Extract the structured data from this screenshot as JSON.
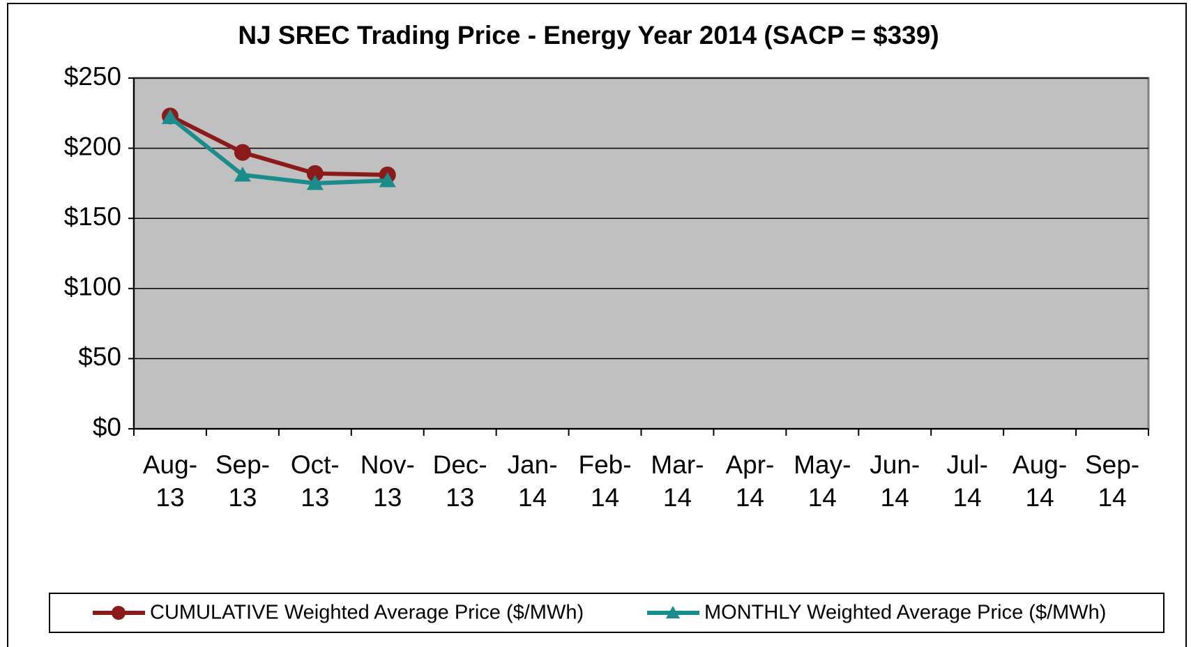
{
  "chart_data": {
    "type": "line",
    "title": "NJ SREC Trading Price - Energy Year 2014 (SACP = $339)",
    "categories": [
      "Aug-13",
      "Sep-13",
      "Oct-13",
      "Nov-13",
      "Dec-13",
      "Jan-14",
      "Feb-14",
      "Mar-14",
      "Apr-14",
      "May-14",
      "Jun-14",
      "Jul-14",
      "Aug-14",
      "Sep-14"
    ],
    "series": [
      {
        "name": "CUMULATIVE Weighted Average Price ($/MWh)",
        "color": "#8b1a1a",
        "marker": "circle",
        "values": [
          223,
          197,
          182,
          181,
          null,
          null,
          null,
          null,
          null,
          null,
          null,
          null,
          null,
          null
        ]
      },
      {
        "name": "MONTHLY Weighted Average Price ($/MWh)",
        "color": "#1a8c8c",
        "marker": "triangle",
        "values": [
          222,
          181,
          175,
          177,
          null,
          null,
          null,
          null,
          null,
          null,
          null,
          null,
          null,
          null
        ]
      }
    ],
    "ylim": [
      0,
      250
    ],
    "yticks": [
      {
        "value": 0,
        "label": "$0"
      },
      {
        "value": 50,
        "label": "$50"
      },
      {
        "value": 100,
        "label": "$100"
      },
      {
        "value": 150,
        "label": "$150"
      },
      {
        "value": 200,
        "label": "$200"
      },
      {
        "value": 250,
        "label": "$250"
      }
    ],
    "grid": true,
    "legend": "bottom"
  }
}
